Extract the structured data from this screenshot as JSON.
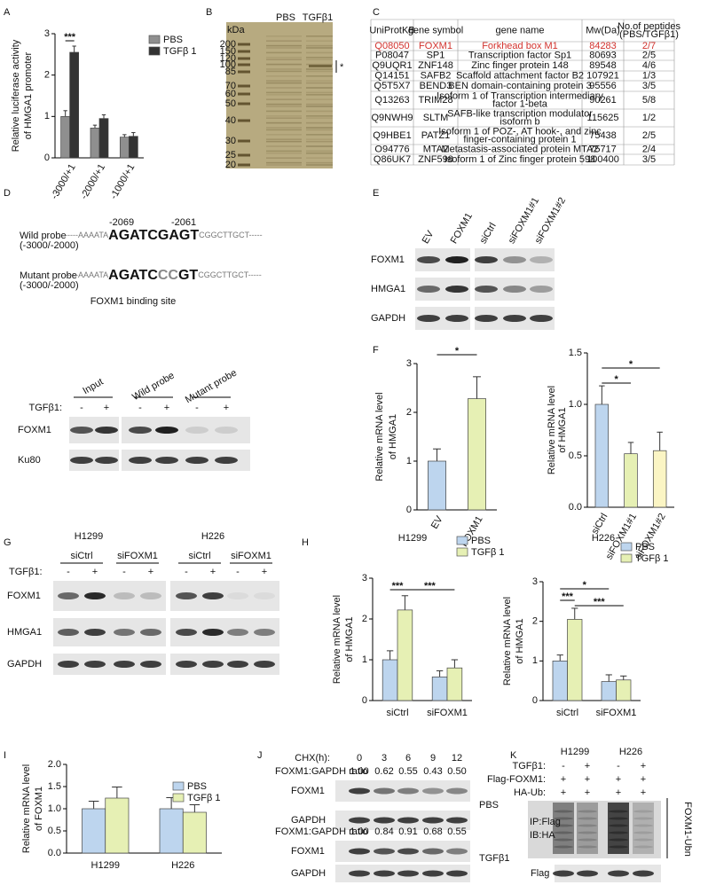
{
  "panels": [
    "A",
    "B",
    "C",
    "D",
    "E",
    "F",
    "G",
    "H",
    "I",
    "J",
    "K"
  ],
  "chart_data": [
    {
      "type": "bar",
      "categories": [
        "-3000/+1",
        "-2000/+1",
        "-1000/+1"
      ],
      "series": [
        {
          "name": "PBS",
          "color": "#8f8f8f",
          "values": [
            1.0,
            0.72,
            0.5
          ],
          "errors": [
            0.14,
            0.07,
            0.06
          ]
        },
        {
          "name": "TGFβ 1",
          "color": "#333333",
          "values": [
            2.55,
            0.95,
            0.52
          ],
          "errors": [
            0.15,
            0.09,
            0.09
          ]
        }
      ],
      "ylim": [
        0,
        3
      ],
      "yticks": [
        0,
        1,
        2,
        3
      ],
      "ylabel": [
        "Relative luciferase activity",
        "of HMGA1 promoter"
      ],
      "annotations": [
        "***"
      ]
    },
    {
      "type": "bar",
      "categories": [
        "EV",
        "FOXM1"
      ],
      "values": [
        1.0,
        2.28
      ],
      "errors": [
        0.25,
        0.45
      ],
      "colors": [
        "#bdd5ee",
        "#e6f0b4"
      ],
      "ylim": [
        0,
        3
      ],
      "yticks": [
        0,
        1,
        2,
        3
      ],
      "ylabel": [
        "Relative mRNA level",
        "of HMGA1"
      ],
      "annotations": [
        "*"
      ]
    },
    {
      "type": "bar",
      "categories": [
        "siCtrl",
        "siFOXM1#1",
        "siFOXM1#2"
      ],
      "values": [
        1.0,
        0.52,
        0.55
      ],
      "errors": [
        0.18,
        0.11,
        0.18
      ],
      "colors": [
        "#bdd5ee",
        "#e6f0b4",
        "#fbf5c4"
      ],
      "ylim": [
        0,
        1.5
      ],
      "yticks": [
        {
          "value": 0,
          "label": "0.0"
        },
        0.5,
        {
          "value": 1,
          "label": "1.0"
        },
        1.5
      ],
      "ylabel": [
        "Relative mRNA level",
        "of HMGA1"
      ],
      "annotations": [
        "*",
        "*"
      ]
    },
    {
      "type": "bar",
      "title": "H1299",
      "categories": [
        "siCtrl",
        "siFOXM1"
      ],
      "series": [
        {
          "name": "PBS",
          "color": "#bdd5ee",
          "values": [
            1.0,
            0.58
          ],
          "errors": [
            0.22,
            0.15
          ]
        },
        {
          "name": "TGFβ 1",
          "color": "#e6f0b4",
          "values": [
            2.22,
            0.8
          ],
          "errors": [
            0.35,
            0.2
          ]
        }
      ],
      "ylim": [
        0,
        3
      ],
      "yticks": [
        0,
        1,
        2,
        3
      ],
      "ylabel": [
        "Relative mRNA level",
        "of HMGA1"
      ],
      "annotations": [
        "***",
        "***"
      ]
    },
    {
      "type": "bar",
      "title": "H226",
      "categories": [
        "siCtrl",
        "siFOXM1"
      ],
      "series": [
        {
          "name": "PBS",
          "color": "#bdd5ee",
          "values": [
            1.0,
            0.48
          ],
          "errors": [
            0.15,
            0.17
          ]
        },
        {
          "name": "TGFβ 1",
          "color": "#e6f0b4",
          "values": [
            2.05,
            0.52
          ],
          "errors": [
            0.28,
            0.1
          ]
        }
      ],
      "ylim": [
        0,
        3
      ],
      "yticks": [
        0,
        1,
        2,
        3
      ],
      "ylabel": [
        "Relative mRNA level",
        "of HMGA1"
      ],
      "annotations": [
        "*",
        "***",
        "***"
      ]
    },
    {
      "type": "bar",
      "categories": [
        "H1299",
        "H226"
      ],
      "series": [
        {
          "name": "PBS",
          "color": "#bdd5ee",
          "values": [
            1.0,
            1.0
          ],
          "errors": [
            0.17,
            0.25
          ]
        },
        {
          "name": "TGFβ 1",
          "color": "#e6f0b4",
          "values": [
            1.24,
            0.92
          ],
          "errors": [
            0.25,
            0.17
          ]
        }
      ],
      "ylim": [
        0,
        2
      ],
      "yticks": [
        {
          "value": 0,
          "label": "0.0"
        },
        0.5,
        {
          "value": 1,
          "label": "1.0"
        },
        1.5,
        {
          "value": 2,
          "label": "2.0"
        }
      ],
      "ylabel": [
        "Relative mRNA level",
        "of FOXM1"
      ]
    }
  ],
  "gel_B": {
    "unit": "kDa",
    "markers": [
      200,
      150,
      120,
      100,
      85,
      70,
      60,
      50,
      40,
      30,
      25,
      20
    ],
    "lanes": [
      "PBS",
      "TGFβ1"
    ],
    "mark": "*"
  },
  "table_C": {
    "header": [
      "UniProtKB",
      "gene symbol",
      "gene name",
      "Mw(Da)",
      [
        "No.of peptides",
        "(PBS/TGFβ1)"
      ]
    ],
    "rows": [
      [
        "Q08050",
        "FOXM1",
        "Forkhead box M1",
        84283,
        "2/7"
      ],
      [
        "P08047",
        "SP1",
        "Transcription factor Sp1",
        80693,
        "2/5"
      ],
      [
        "Q9UQR1",
        "ZNF148",
        "Zinc finger protein 148",
        89548,
        "4/6"
      ],
      [
        "Q14151",
        "SAFB2",
        "Scaffold attachment factor B2",
        107921,
        "1/3"
      ],
      [
        "Q5T5X7",
        "BEND3",
        "BEN domain-containing protein 3",
        95556,
        "3/5"
      ],
      [
        "Q13263",
        "TRIM28",
        [
          "Isoform 1 of Transcription intermediary",
          "factor 1-beta"
        ],
        90261,
        "5/8"
      ],
      [
        "Q9NWH9",
        "SLTM",
        [
          "SAFB-like transcription modulator",
          "isoform b"
        ],
        115625,
        "1/2"
      ],
      [
        "Q9HBE1",
        "PATZ1",
        [
          "Isoform 1 of POZ-, AT hook-, and zinc",
          "finger-containing protein 1"
        ],
        75438,
        "2/5"
      ],
      [
        "O94776",
        "MTA2",
        "Metastasis-associated protein MTA2",
        75717,
        "2/4"
      ],
      [
        "Q86UK7",
        "ZNF598",
        "Isoform 1 of Zinc finger protein 598",
        100400,
        "3/5"
      ]
    ]
  },
  "probe_D": {
    "positions": [
      "-2069",
      "-2061"
    ],
    "wild": {
      "name": "Wild probe",
      "range": "(-3000/-2000)",
      "seq": [
        "-----AAAATA",
        "AGATCGAGT",
        "CGGCTTGCT-----"
      ]
    },
    "mutant": {
      "name": "Mutant probe",
      "range": "(-3000/-2000)",
      "seq": [
        "-----AAAATA",
        "AGATC",
        "CC",
        "GT",
        "CGGCTTGCT-----"
      ]
    },
    "caption": "FOXM1 binding site"
  },
  "blot_D": {
    "groups": [
      "Input",
      "Wild probe",
      "Mutant probe"
    ],
    "treatment": "TGFβ1:",
    "signs": [
      "-",
      "+",
      "-",
      "+",
      "-",
      "+"
    ],
    "rows": [
      "FOXM1",
      "Ku80"
    ]
  },
  "blot_E": {
    "lanes": [
      "EV",
      "FOXM1",
      "siCtrl",
      "siFOXM1#1",
      "siFOXM1#2"
    ],
    "rows": [
      "FOXM1",
      "HMGA1",
      "GAPDH"
    ]
  },
  "blot_G": {
    "cells": [
      "H1299",
      "H226"
    ],
    "groups": [
      "siCtrl",
      "siFOXM1",
      "siCtrl",
      "siFOXM1"
    ],
    "treatment": "TGFβ1:",
    "signs": [
      "-",
      "+",
      "-",
      "+",
      "-",
      "+",
      "-",
      "+"
    ],
    "rows": [
      "FOXM1",
      "HMGA1",
      "GAPDH"
    ]
  },
  "blot_J": {
    "time_label": "CHX(h):",
    "times": [
      0,
      3,
      6,
      9,
      12
    ],
    "panels": [
      {
        "ratio_label": "FOXM1:GAPDH ratio",
        "ratios": [
          "1.00",
          "0.62",
          "0.55",
          "0.43",
          "0.50"
        ],
        "rows": [
          "FOXM1",
          "GAPDH"
        ],
        "condition": "PBS"
      },
      {
        "ratio_label": "FOXM1:GAPDH ratio",
        "ratios": [
          "1.00",
          "0.84",
          "0.91",
          "0.68",
          "0.55"
        ],
        "rows": [
          "FOXM1",
          "GAPDH"
        ],
        "condition": "TGFβ1"
      }
    ]
  },
  "blot_K": {
    "cells": [
      "H1299",
      "H226"
    ],
    "conditions": [
      {
        "label": "TGFβ1:",
        "signs": [
          "-",
          "+",
          "-",
          "+"
        ]
      },
      {
        "label": "Flag-FOXM1:",
        "signs": [
          "+",
          "+",
          "+",
          "+"
        ]
      },
      {
        "label": "HA-Ub:",
        "signs": [
          "+",
          "+",
          "+",
          "+"
        ]
      }
    ],
    "ip": [
      "IP:Flag",
      "IB:HA"
    ],
    "bracket_label": "FOXM1-Ubn",
    "bottom_row": "Flag"
  }
}
